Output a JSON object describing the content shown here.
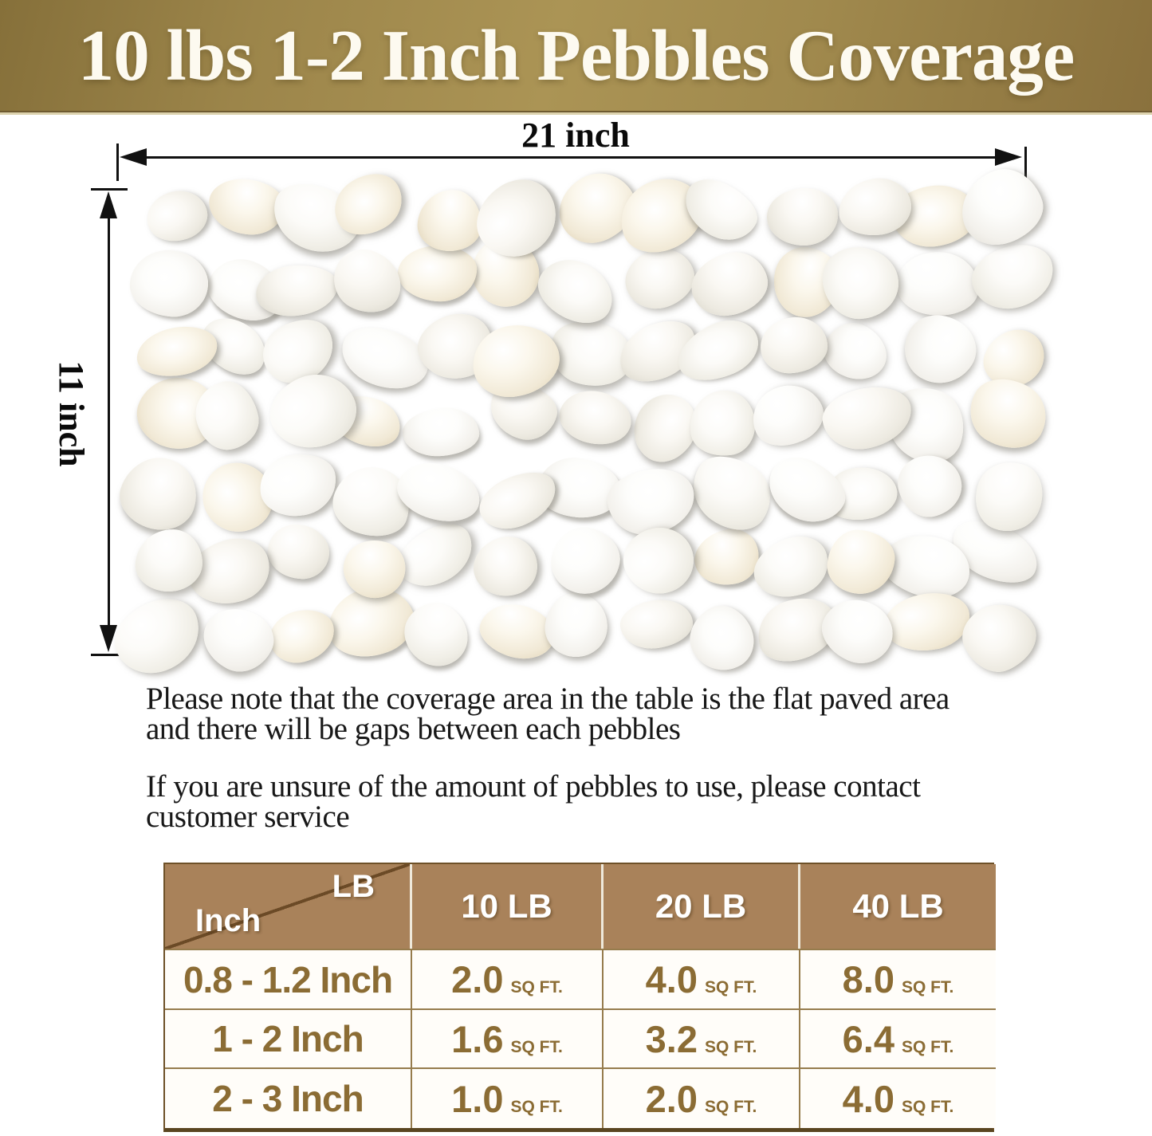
{
  "banner": {
    "title": "10 lbs 1-2 Inch Pebbles Coverage",
    "bg_color": "#9c8448",
    "text_color": "#fdfaf0"
  },
  "diagram": {
    "width_label": "21 inch",
    "height_label": "11 inch",
    "arrow_color": "#111111"
  },
  "notes": {
    "note1_line1": "Please note that the coverage area in the table is the flat paved area",
    "note1_line2": "and there will be gaps between each pebbles",
    "note2_line1": "If you are unsure of the amount of pebbles to use, please contact",
    "note2_line2": "customer service"
  },
  "coverage_table": {
    "corner_top_right": "LB",
    "corner_bottom_left": "Inch",
    "columns": [
      "10 LB",
      "20 LB",
      "40 LB"
    ],
    "unit": "SQ FT.",
    "rows": [
      {
        "size": "0.8 - 1.2 Inch",
        "values": [
          "2.0",
          "4.0",
          "8.0"
        ]
      },
      {
        "size": "1 - 2 Inch",
        "values": [
          "1.6",
          "3.2",
          "6.4"
        ]
      },
      {
        "size": "2 - 3 Inch",
        "values": [
          "1.0",
          "2.0",
          "4.0"
        ]
      }
    ],
    "header_bg": "#a9825a",
    "header_text_color": "#ffffff",
    "value_color": "#8b6c34"
  }
}
